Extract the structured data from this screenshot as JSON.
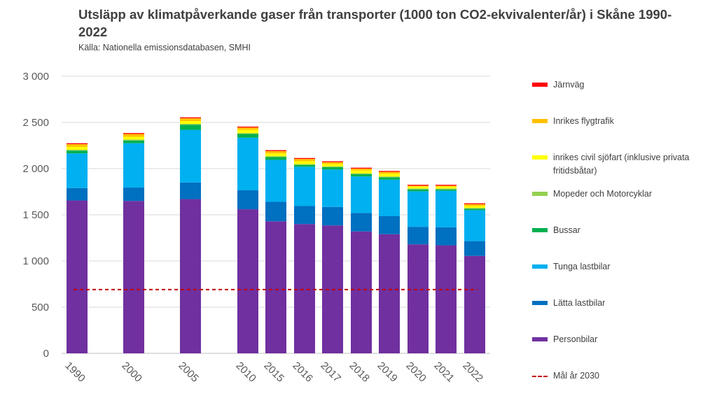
{
  "chart_data": {
    "type": "bar",
    "stacked": true,
    "title": "Utsläpp av klimatpåverkande gaser från transporter (1000 ton CO2-ekvivalenter/år) i Skåne 1990-2022",
    "source": "Källa: Nationella emissionsdatabasen, SMHI",
    "categories": [
      "1990",
      "2000",
      "2005",
      "2010",
      "2015",
      "2016",
      "2017",
      "2018",
      "2019",
      "2020",
      "2021",
      "2022"
    ],
    "ylim": [
      0,
      3000
    ],
    "yticks": [
      0,
      500,
      1000,
      1500,
      2000,
      2500,
      3000
    ],
    "ytick_labels": [
      "0",
      "500",
      "1 000",
      "1 500",
      "2 000",
      "2 500",
      "3 000"
    ],
    "grid": true,
    "legend_position": "right",
    "series": [
      {
        "name": "Personbilar",
        "color": "#7030A0",
        "values": [
          1655,
          1650,
          1670,
          1560,
          1430,
          1400,
          1385,
          1320,
          1290,
          1180,
          1170,
          1055
        ]
      },
      {
        "name": "Lätta lastbilar",
        "color": "#0070C0",
        "values": [
          135,
          145,
          180,
          205,
          210,
          195,
          200,
          200,
          195,
          190,
          195,
          160
        ]
      },
      {
        "name": "Tunga lastbilar",
        "color": "#00B0F0",
        "values": [
          375,
          480,
          570,
          570,
          455,
          425,
          405,
          395,
          395,
          385,
          395,
          335
        ]
      },
      {
        "name": "Bussar",
        "color": "#00B050",
        "values": [
          30,
          30,
          55,
          40,
          30,
          20,
          25,
          25,
          25,
          20,
          15,
          15
        ]
      },
      {
        "name": "Mopeder och Motorcyklar",
        "color": "#92D050",
        "values": [
          10,
          10,
          10,
          10,
          10,
          10,
          10,
          10,
          10,
          10,
          10,
          10
        ]
      },
      {
        "name": "inrikes civil sjöfart (inklusive privata fritidsbåtar)",
        "color": "#FFFF00",
        "values": [
          30,
          30,
          30,
          35,
          30,
          30,
          25,
          30,
          30,
          20,
          20,
          20
        ]
      },
      {
        "name": "Inrikes flygtrafik",
        "color": "#FFC000",
        "values": [
          30,
          30,
          30,
          25,
          25,
          25,
          20,
          20,
          20,
          10,
          10,
          20
        ]
      },
      {
        "name": "Järnväg",
        "color": "#FF0000",
        "values": [
          10,
          10,
          10,
          10,
          10,
          10,
          10,
          10,
          10,
          10,
          10,
          10
        ]
      }
    ],
    "reference_line": {
      "name": "Mål år 2030",
      "value": 690,
      "color": "#C00000"
    }
  }
}
